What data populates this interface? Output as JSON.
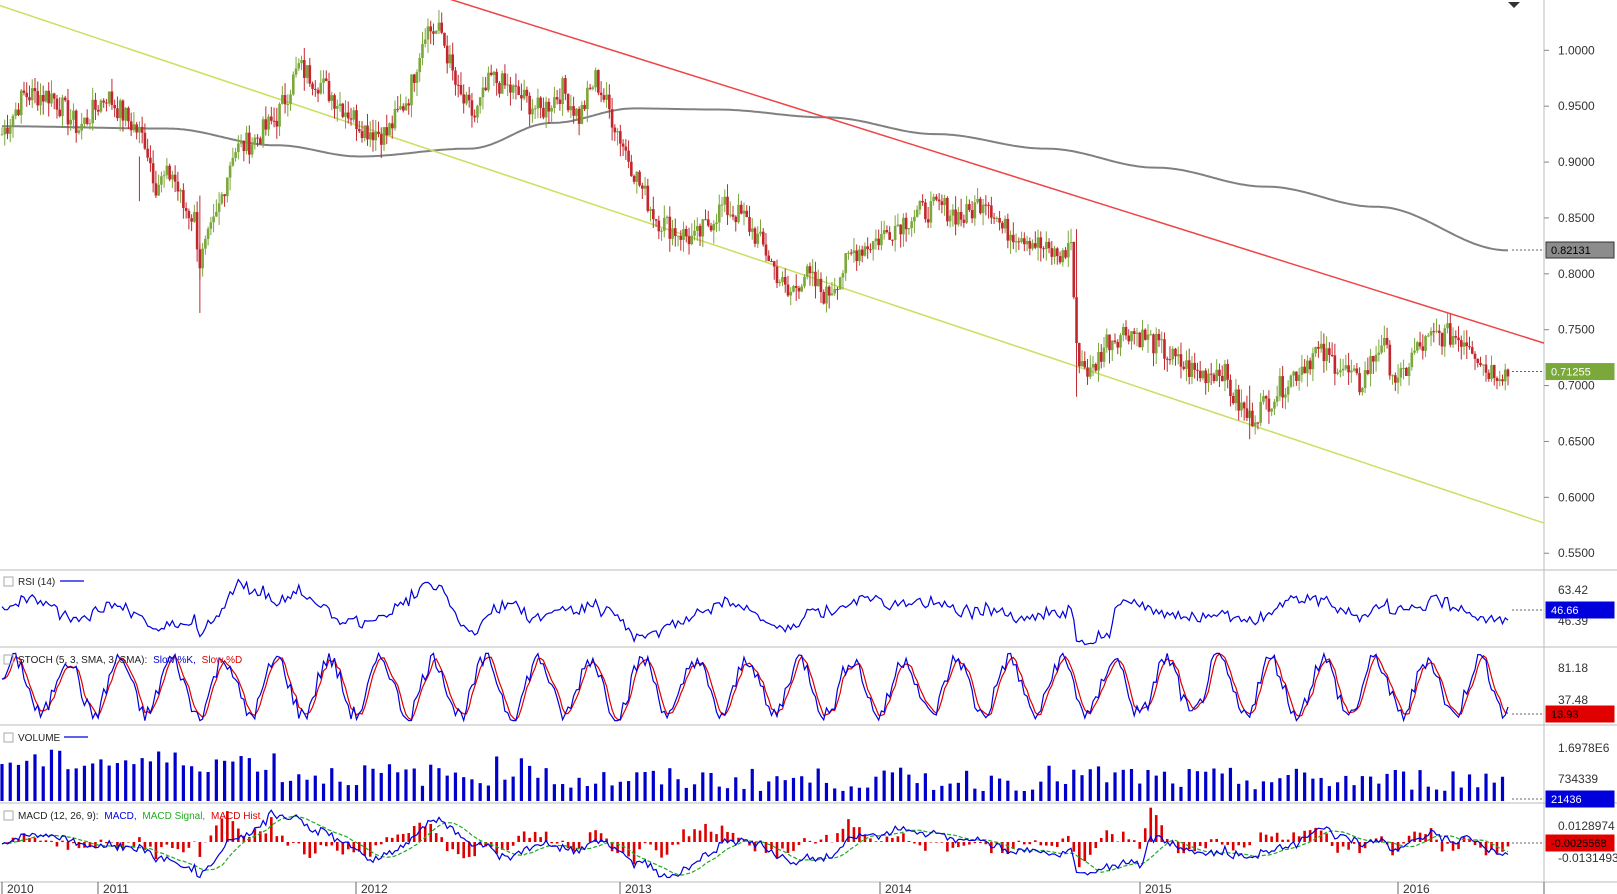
{
  "panels": {
    "rsi": {
      "label": "RSI (14)"
    },
    "stoch": {
      "label_prefix": "STOCH (5, 3, SMA, 3, SMA):",
      "k_label": "Slow %K,",
      "d_label": "Slow %D"
    },
    "volume": {
      "label": "VOLUME"
    },
    "macd": {
      "label_prefix": "MACD (12, 26, 9):",
      "macd_label": "MACD,",
      "signal_label": "MACD Signal,",
      "hist_label": "MACD Hist"
    }
  },
  "colors": {
    "bull": "#7aa83a",
    "bear": "#c1272d",
    "ma": "#808080",
    "upper_trend": "#ee4444",
    "lower_trend": "#c8e060",
    "blue": "#0000dd",
    "red": "#dd0000",
    "green": "#22aa22"
  },
  "chart_data": {
    "type": "candlestick",
    "x_labels": [
      "2010",
      "2011",
      "2012",
      "2013",
      "2014",
      "2015",
      "2016"
    ],
    "price_axis": {
      "ticks": [
        "1.0000",
        "0.9500",
        "0.9000",
        "0.8500",
        "0.8000",
        "0.7500",
        "0.7000",
        "0.6500",
        "0.6000",
        "0.5500"
      ],
      "range": [
        0.535,
        1.045
      ]
    },
    "current_price": "0.71255",
    "ma_value": "0.82131",
    "rsi": {
      "ticks": [
        "63.42",
        "46.39"
      ],
      "current": "46.66"
    },
    "stoch": {
      "ticks": [
        "81.18",
        "37.48"
      ],
      "current": "13.93"
    },
    "volume": {
      "ticks": [
        "1.6978E6",
        "734339"
      ],
      "current": "21436"
    },
    "macd": {
      "ticks": [
        "0.0128974",
        "-0.0131493"
      ],
      "current_signal": "-0.0025568"
    }
  }
}
